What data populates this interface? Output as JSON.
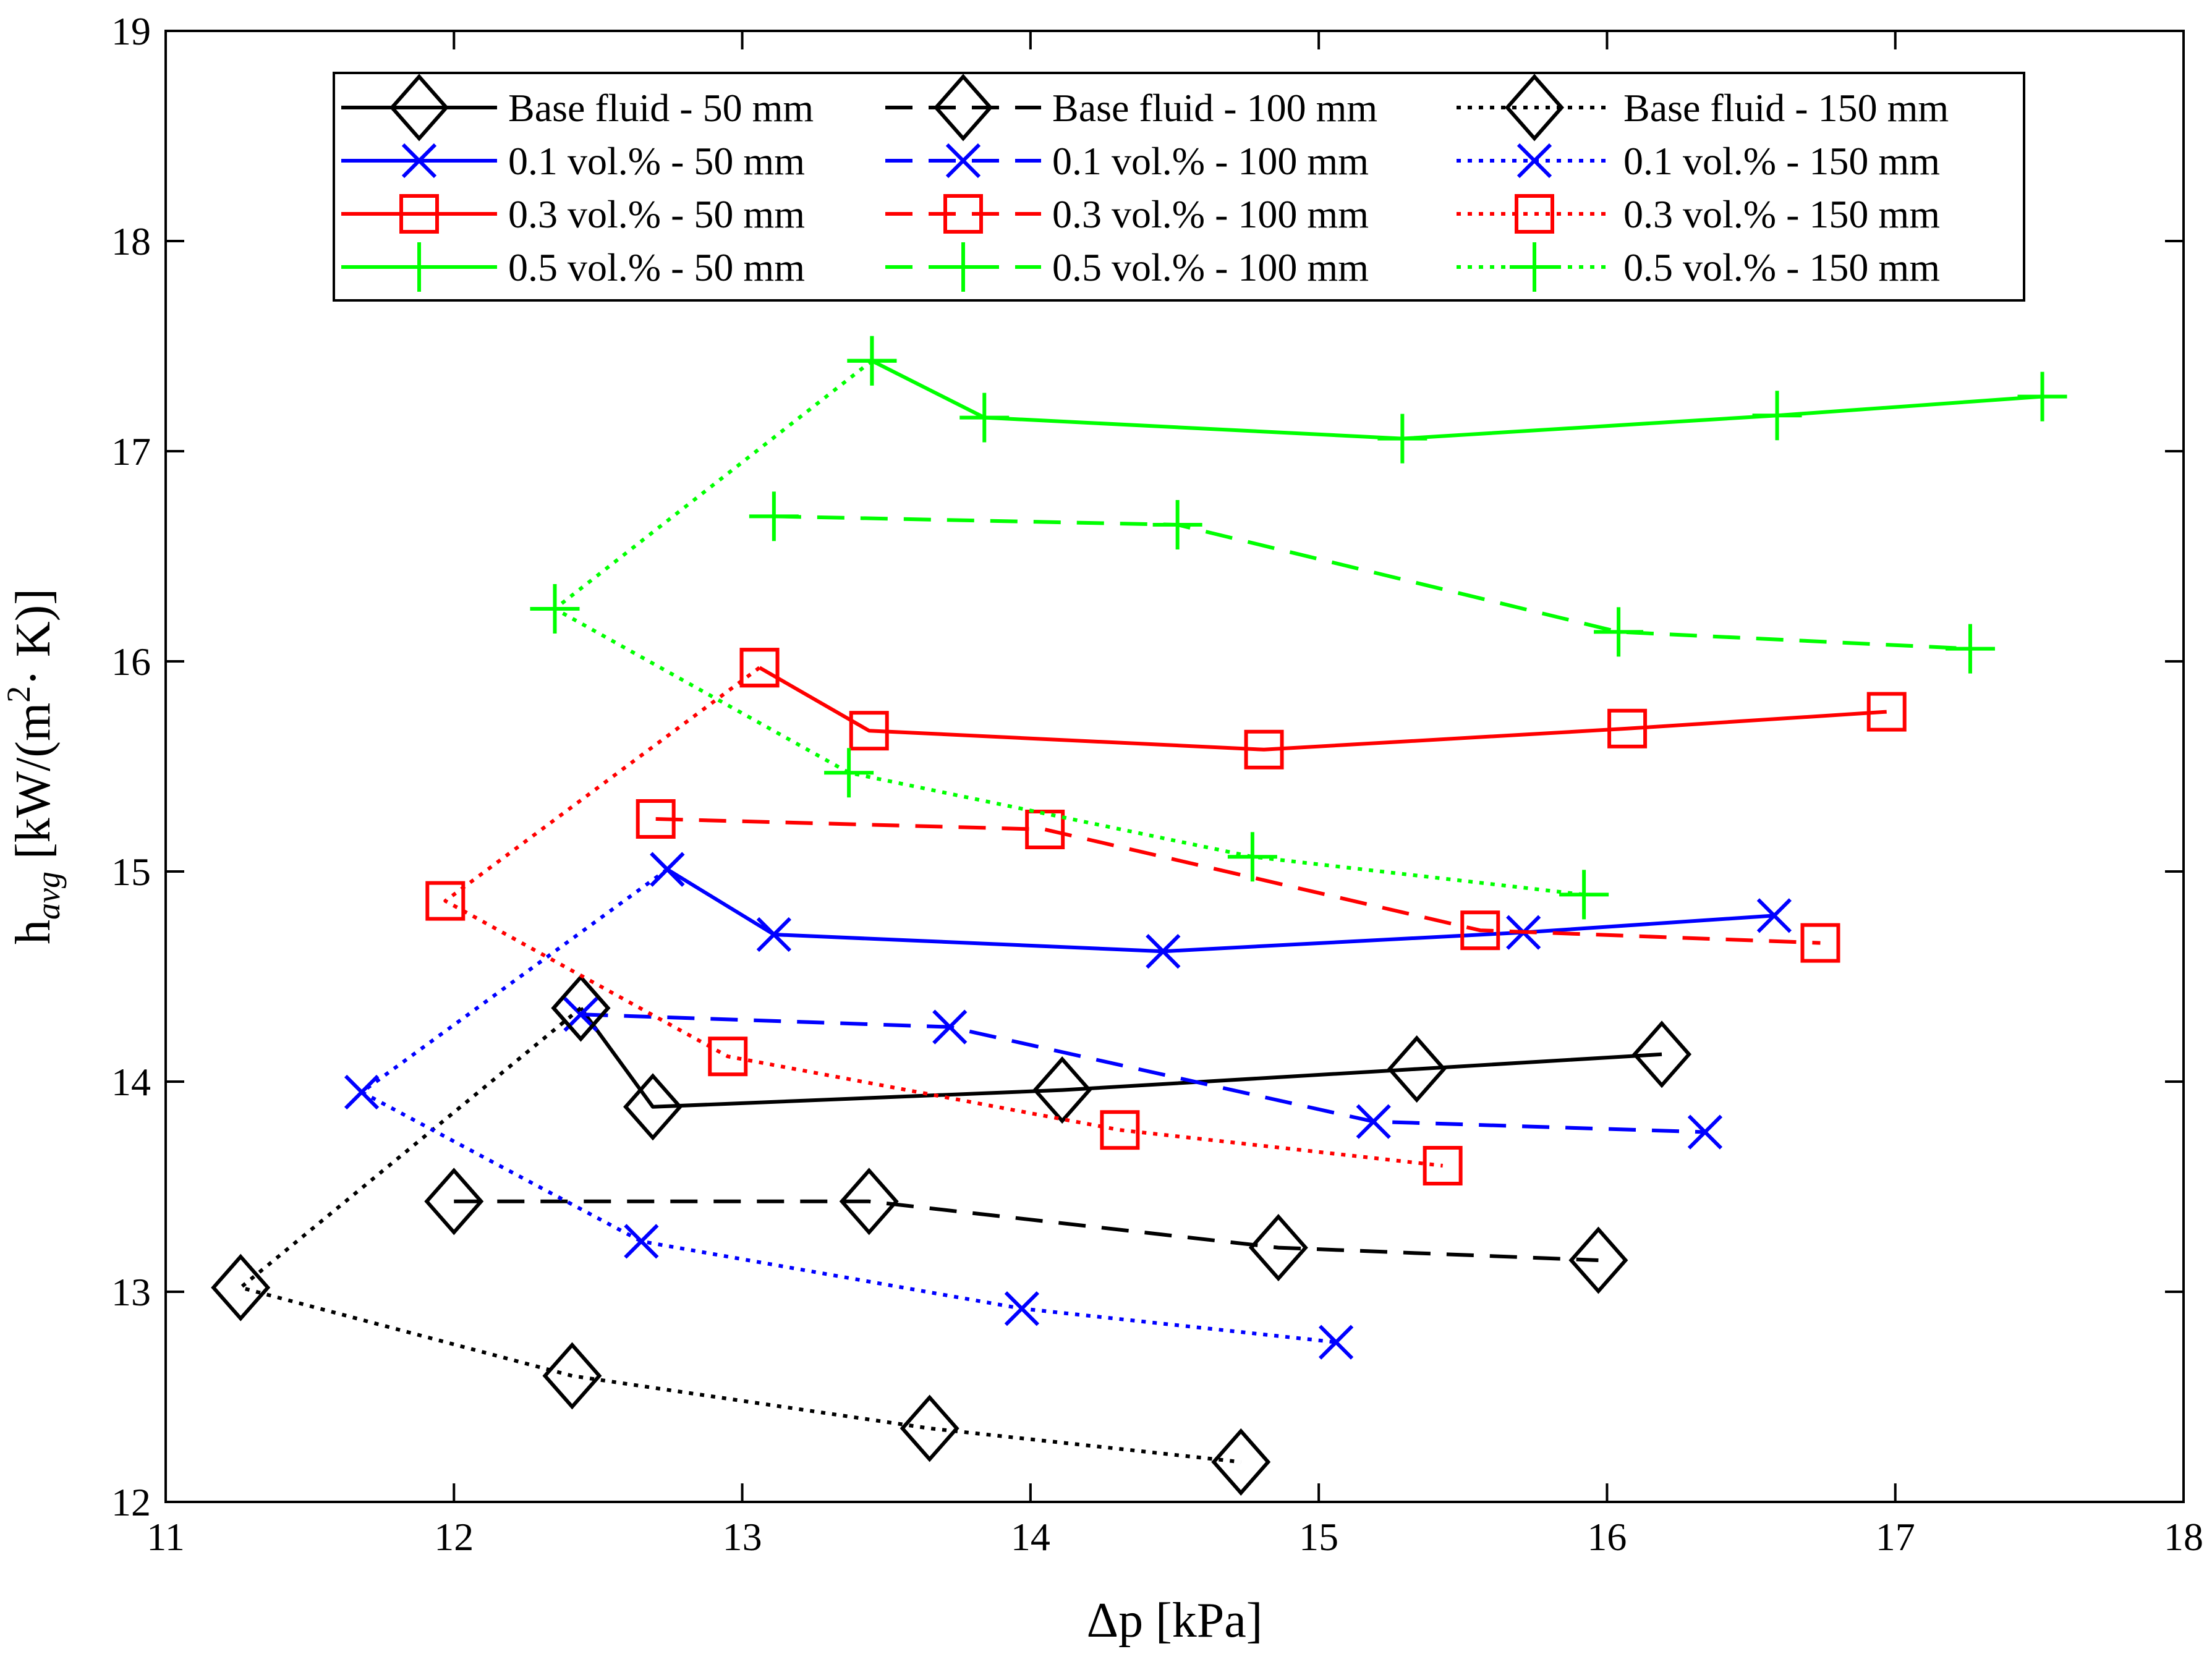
{
  "chart_data": {
    "type": "line",
    "title": "",
    "xlabel": "Δp [kPa]",
    "ylabel_parts": [
      "h",
      "avg",
      " [kW/(m",
      "2",
      "· K)]"
    ],
    "xlim": [
      11,
      18
    ],
    "ylim": [
      12,
      19
    ],
    "xticks": [
      11,
      12,
      13,
      14,
      15,
      16,
      17,
      18
    ],
    "yticks": [
      12,
      13,
      14,
      15,
      16,
      17,
      18,
      19
    ],
    "grid": false,
    "legend_position": "top",
    "colors": {
      "black": "#000000",
      "blue": "#0000ff",
      "red": "#ff0000",
      "green": "#00ff00"
    },
    "series": [
      {
        "name": "Base fluid - 50 mm",
        "color": "black",
        "dash": "solid",
        "marker": "diamond",
        "x": [
          12.44,
          12.69,
          14.11,
          15.34,
          16.19
        ],
        "y": [
          14.35,
          13.88,
          13.96,
          14.06,
          14.13
        ]
      },
      {
        "name": "0.1 vol.% - 50 mm",
        "color": "blue",
        "dash": "solid",
        "marker": "x",
        "x": [
          12.74,
          13.11,
          14.46,
          15.71,
          16.58
        ],
        "y": [
          15.01,
          14.7,
          14.62,
          14.71,
          14.79
        ]
      },
      {
        "name": "0.3 vol.% - 50 mm",
        "color": "red",
        "dash": "solid",
        "marker": "square",
        "x": [
          13.06,
          13.44,
          14.81,
          16.07,
          16.97
        ],
        "y": [
          15.97,
          15.67,
          15.58,
          15.68,
          15.76
        ]
      },
      {
        "name": "0.5 vol.% - 50 mm",
        "color": "green",
        "dash": "solid",
        "marker": "plus",
        "x": [
          13.45,
          13.84,
          15.29,
          16.59,
          17.51
        ],
        "y": [
          17.43,
          17.16,
          17.06,
          17.17,
          17.26
        ]
      },
      {
        "name": "Base fluid - 100 mm",
        "color": "black",
        "dash": "dashed",
        "marker": "diamond",
        "x": [
          12.0,
          13.44,
          14.86,
          15.97
        ],
        "y": [
          13.43,
          13.43,
          13.21,
          13.15
        ]
      },
      {
        "name": "0.1 vol.% - 100 mm",
        "color": "blue",
        "dash": "dashed",
        "marker": "x",
        "x": [
          12.44,
          13.72,
          15.19,
          16.34
        ],
        "y": [
          14.32,
          14.26,
          13.81,
          13.76
        ]
      },
      {
        "name": "0.3 vol.% - 100 mm",
        "color": "red",
        "dash": "dashed",
        "marker": "square",
        "x": [
          12.7,
          14.05,
          15.56,
          16.74
        ],
        "y": [
          15.25,
          15.2,
          14.72,
          14.66
        ]
      },
      {
        "name": "0.5 vol.% - 100 mm",
        "color": "green",
        "dash": "dashed",
        "marker": "plus",
        "x": [
          13.11,
          14.51,
          16.04,
          17.26
        ],
        "y": [
          16.69,
          16.65,
          16.14,
          16.06
        ]
      },
      {
        "name": "Base fluid - 150 mm",
        "color": "black",
        "dash": "dotted",
        "marker": "diamond",
        "x": [
          12.44,
          11.26,
          12.41,
          13.65,
          14.73
        ],
        "y": [
          14.35,
          13.02,
          12.6,
          12.35,
          12.19
        ]
      },
      {
        "name": "0.1 vol.% - 150 mm",
        "color": "blue",
        "dash": "dotted",
        "marker": "x",
        "x": [
          12.74,
          11.68,
          12.65,
          13.97,
          15.06
        ],
        "y": [
          15.01,
          13.95,
          13.24,
          12.92,
          12.76
        ]
      },
      {
        "name": "0.3 vol.% - 150 mm",
        "color": "red",
        "dash": "dotted",
        "marker": "square",
        "x": [
          13.06,
          11.97,
          12.95,
          14.31,
          15.43
        ],
        "y": [
          15.97,
          14.86,
          14.12,
          13.77,
          13.6
        ]
      },
      {
        "name": "0.5 vol.% - 150 mm",
        "color": "green",
        "dash": "dotted",
        "marker": "plus",
        "x": [
          13.45,
          12.35,
          13.37,
          14.77,
          15.92
        ],
        "y": [
          17.43,
          16.25,
          15.47,
          15.07,
          14.89
        ]
      }
    ]
  }
}
